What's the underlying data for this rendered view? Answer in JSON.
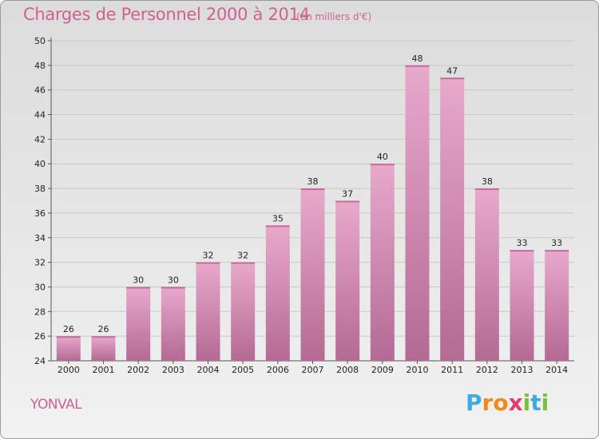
{
  "chart_data": {
    "type": "bar",
    "title": "Charges de Personnel 2000 à 2014",
    "subtitle": "(en milliers d'€)",
    "categories": [
      "2000",
      "2001",
      "2002",
      "2003",
      "2004",
      "2005",
      "2006",
      "2007",
      "2008",
      "2009",
      "2010",
      "2011",
      "2012",
      "2013",
      "2014"
    ],
    "values": [
      26,
      26,
      30,
      30,
      32,
      32,
      35,
      38,
      37,
      40,
      48,
      47,
      38,
      33,
      33
    ],
    "ylim": [
      24,
      50
    ],
    "yticks": [
      24,
      26,
      28,
      30,
      32,
      34,
      36,
      38,
      40,
      42,
      44,
      46,
      48,
      50
    ],
    "grid": true,
    "bar_color": "#d889b4",
    "data_labels": true
  },
  "footer": {
    "place": "YONVAL",
    "logo_letters": [
      "P",
      "r",
      "o",
      "x",
      "i",
      "t",
      "i"
    ],
    "logo_colors": [
      "#3fa9e0",
      "#f08a1c",
      "#f08a1c",
      "#e53b6e",
      "#7bbf3a",
      "#3fa9e0",
      "#7bbf3a"
    ]
  }
}
